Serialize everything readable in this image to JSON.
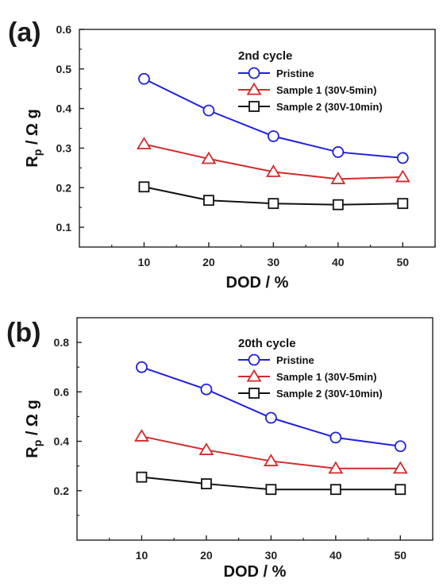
{
  "chart_data": [
    {
      "type": "line",
      "panel_label": "(a)",
      "title": "",
      "legend_title": "2nd cycle",
      "legend_position": "top-right",
      "xlabel": "DOD / %",
      "ylabel": {
        "main": "R",
        "sub": "p",
        "unit": " / Ω g"
      },
      "xlim": [
        0,
        55
      ],
      "ylim": [
        0.05,
        0.6
      ],
      "x_ticks": [
        10,
        20,
        30,
        40,
        50
      ],
      "x_tick_labels": [
        "10",
        "20",
        "30",
        "40",
        "50"
      ],
      "y_ticks": [
        0.1,
        0.2,
        0.3,
        0.4,
        0.5,
        0.6
      ],
      "y_tick_labels": [
        "0.1",
        "0.2",
        "0.3",
        "0.4",
        "0.5",
        "0.6"
      ],
      "grid": false,
      "x": [
        10,
        20,
        30,
        40,
        50
      ],
      "series": [
        {
          "name": "Pristine",
          "color": "#1f1fe0",
          "marker": "circle",
          "values": [
            0.475,
            0.395,
            0.33,
            0.29,
            0.275
          ]
        },
        {
          "name": "Sample 1 (30V-5min)",
          "color": "#d42a2a",
          "marker": "triangle",
          "values": [
            0.31,
            0.273,
            0.24,
            0.222,
            0.227
          ]
        },
        {
          "name": "Sample 2 (30V-10min)",
          "color": "#111111",
          "marker": "square",
          "values": [
            0.202,
            0.168,
            0.16,
            0.157,
            0.16
          ]
        }
      ]
    },
    {
      "type": "line",
      "panel_label": "(b)",
      "title": "",
      "legend_title": "20th cycle",
      "legend_position": "top-right",
      "xlabel": "DOD / %",
      "ylabel": {
        "main": "R",
        "sub": "p",
        "unit": " / Ω g"
      },
      "xlim": [
        0,
        55
      ],
      "ylim": [
        0.0,
        0.9
      ],
      "x_ticks": [
        10,
        20,
        30,
        40,
        50
      ],
      "x_tick_labels": [
        "10",
        "20",
        "30",
        "40",
        "50"
      ],
      "y_ticks": [
        0.2,
        0.4,
        0.6,
        0.8
      ],
      "y_tick_labels": [
        "0.2",
        "0.4",
        "0.6",
        "0.8"
      ],
      "grid": false,
      "x": [
        10,
        20,
        30,
        40,
        50
      ],
      "series": [
        {
          "name": "Pristine",
          "color": "#1f1fe0",
          "marker": "circle",
          "values": [
            0.7,
            0.61,
            0.495,
            0.415,
            0.38
          ]
        },
        {
          "name": "Sample 1 (30V-5min)",
          "color": "#d42a2a",
          "marker": "triangle",
          "values": [
            0.42,
            0.365,
            0.32,
            0.29,
            0.29
          ]
        },
        {
          "name": "Sample 2 (30V-10min)",
          "color": "#111111",
          "marker": "square",
          "values": [
            0.255,
            0.228,
            0.205,
            0.205,
            0.205
          ]
        }
      ]
    }
  ]
}
